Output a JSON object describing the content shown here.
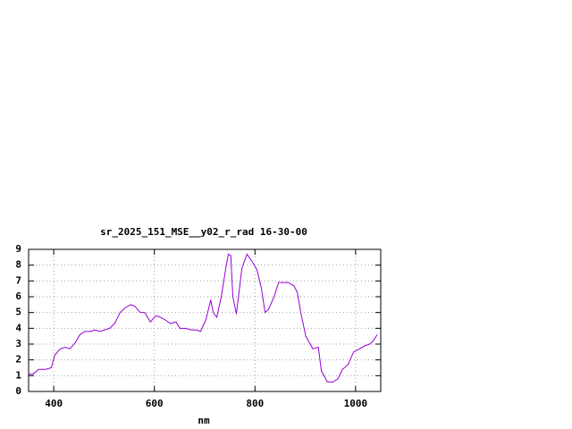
{
  "chart_data": {
    "type": "line",
    "title": "sr_2025_151_MSE__y02_r_rad 16-30-00",
    "x_label": "nm",
    "x": [
      350,
      359,
      370,
      384,
      395,
      402,
      413,
      423,
      432,
      443,
      452,
      462,
      473,
      482,
      492,
      501,
      511,
      521,
      532,
      542,
      553,
      561,
      572,
      581,
      592,
      603,
      612,
      623,
      632,
      643,
      651,
      662,
      673,
      683,
      692,
      703,
      712,
      717,
      724,
      733,
      742,
      747,
      752,
      756,
      763,
      774,
      784,
      795,
      804,
      813,
      820,
      827,
      838,
      847,
      856,
      866,
      877,
      884,
      891,
      901,
      908,
      915,
      926,
      932,
      944,
      955,
      965,
      974,
      985,
      996,
      1008,
      1019,
      1028,
      1035,
      1043
    ],
    "series": [
      {
        "name": "sr_2025_151_MSE__y02_r_rad 16-30-00",
        "color": "#9400d3",
        "values": [
          1.1,
          1.1,
          1.4,
          1.4,
          1.5,
          2.3,
          2.7,
          2.8,
          2.7,
          3.1,
          3.6,
          3.8,
          3.8,
          3.9,
          3.8,
          3.9,
          4.0,
          4.3,
          5.0,
          5.3,
          5.5,
          5.4,
          5.0,
          5.0,
          4.4,
          4.8,
          4.7,
          4.5,
          4.3,
          4.4,
          4.0,
          4.0,
          3.9,
          3.9,
          3.8,
          4.6,
          5.8,
          5.0,
          4.7,
          6.0,
          7.8,
          8.7,
          8.6,
          6.0,
          4.9,
          7.8,
          8.7,
          8.2,
          7.7,
          6.5,
          5.0,
          5.2,
          6.0,
          6.9,
          6.9,
          6.9,
          6.7,
          6.3,
          5.0,
          3.5,
          3.1,
          2.7,
          2.8,
          1.3,
          0.6,
          0.6,
          0.8,
          1.4,
          1.7,
          2.5,
          2.7,
          2.9,
          3.0,
          3.2,
          3.6
        ]
      }
    ],
    "xlim": [
      350,
      1050
    ],
    "ylim": [
      0,
      9
    ],
    "xticks": [
      400,
      600,
      800,
      1000
    ],
    "yticks": [
      0,
      1,
      2,
      3,
      4,
      5,
      6,
      7,
      8,
      9
    ],
    "grid": true
  }
}
